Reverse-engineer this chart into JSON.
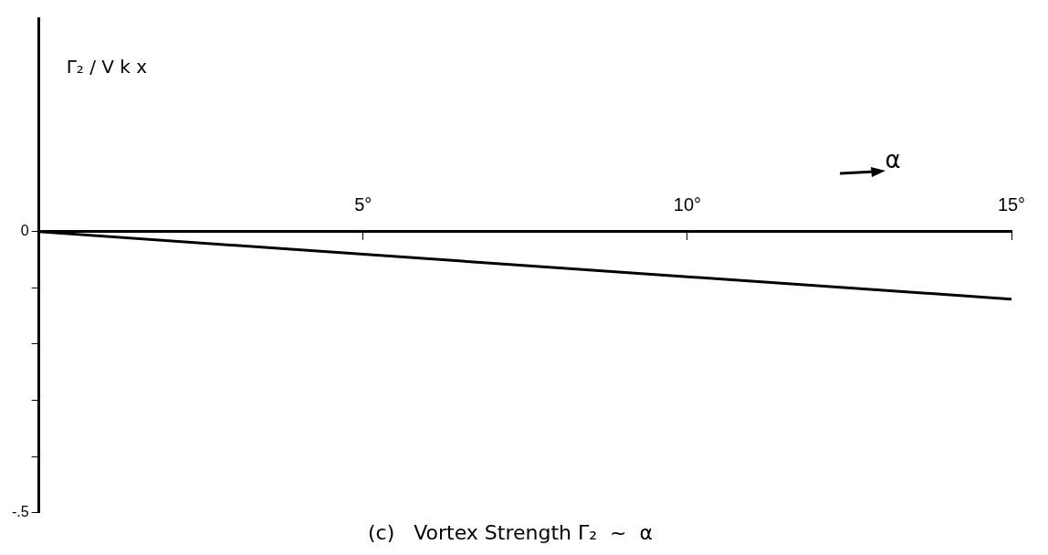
{
  "chart_data": {
    "type": "line",
    "title": "(c)   Vortex Strength Γ₂  ~  α",
    "xlabel": "α",
    "ylabel": "Γ₂ / V k x",
    "x": [
      0,
      15
    ],
    "series": [
      {
        "color": "#000000",
        "values": [
          0,
          -0.12
        ]
      }
    ],
    "xlim": [
      0,
      15
    ],
    "ylim": [
      -0.5,
      0.38
    ],
    "xticks": [
      {
        "value": 5,
        "label": "5°"
      },
      {
        "value": 10,
        "label": "10°"
      },
      {
        "value": 15,
        "label": "15°"
      }
    ],
    "yticks": [
      {
        "value": -0.5,
        "label": "-.5"
      },
      {
        "value": -0.4,
        "label": null
      },
      {
        "value": -0.3,
        "label": null
      },
      {
        "value": -0.2,
        "label": null
      },
      {
        "value": -0.1,
        "label": null
      },
      {
        "value": 0,
        "label": "0"
      }
    ],
    "grid": false,
    "legend": false,
    "marker": "none",
    "line_style": "solid"
  }
}
